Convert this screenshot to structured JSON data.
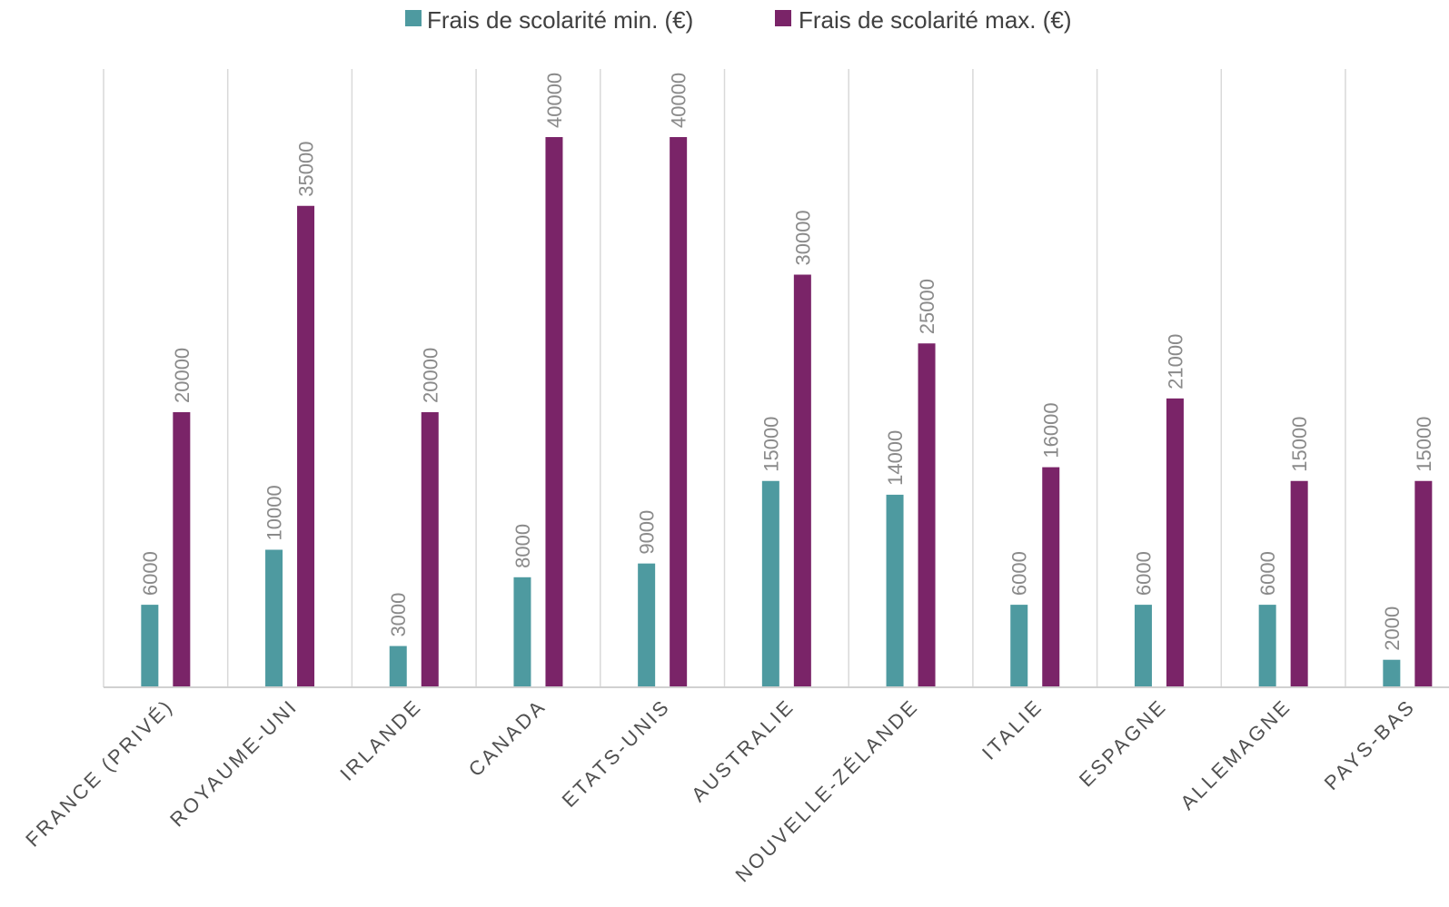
{
  "chart_data": {
    "type": "bar",
    "categories": [
      "FRANCE (PRIVÉ)",
      "ROYAUME-UNI",
      "IRLANDE",
      "CANADA",
      "ETATS-UNIS",
      "AUSTRALIE",
      "NOUVELLE-ZÉLANDE",
      "ITALIE",
      "ESPAGNE",
      "ALLEMAGNE",
      "PAYS-BAS"
    ],
    "series": [
      {
        "name": "Frais de scolarité min. (€)",
        "color": "#4e9aa0",
        "values": [
          6000,
          10000,
          3000,
          8000,
          9000,
          15000,
          14000,
          6000,
          6000,
          6000,
          2000
        ]
      },
      {
        "name": "Frais de scolarité max. (€)",
        "color": "#7a2468",
        "values": [
          20000,
          35000,
          20000,
          40000,
          40000,
          30000,
          25000,
          16000,
          21000,
          15000,
          15000
        ]
      }
    ],
    "ylim": [
      0,
      45000
    ],
    "grid": "vertical category separators",
    "legend_position": "top-center",
    "data_labels": "rotated above bars"
  }
}
